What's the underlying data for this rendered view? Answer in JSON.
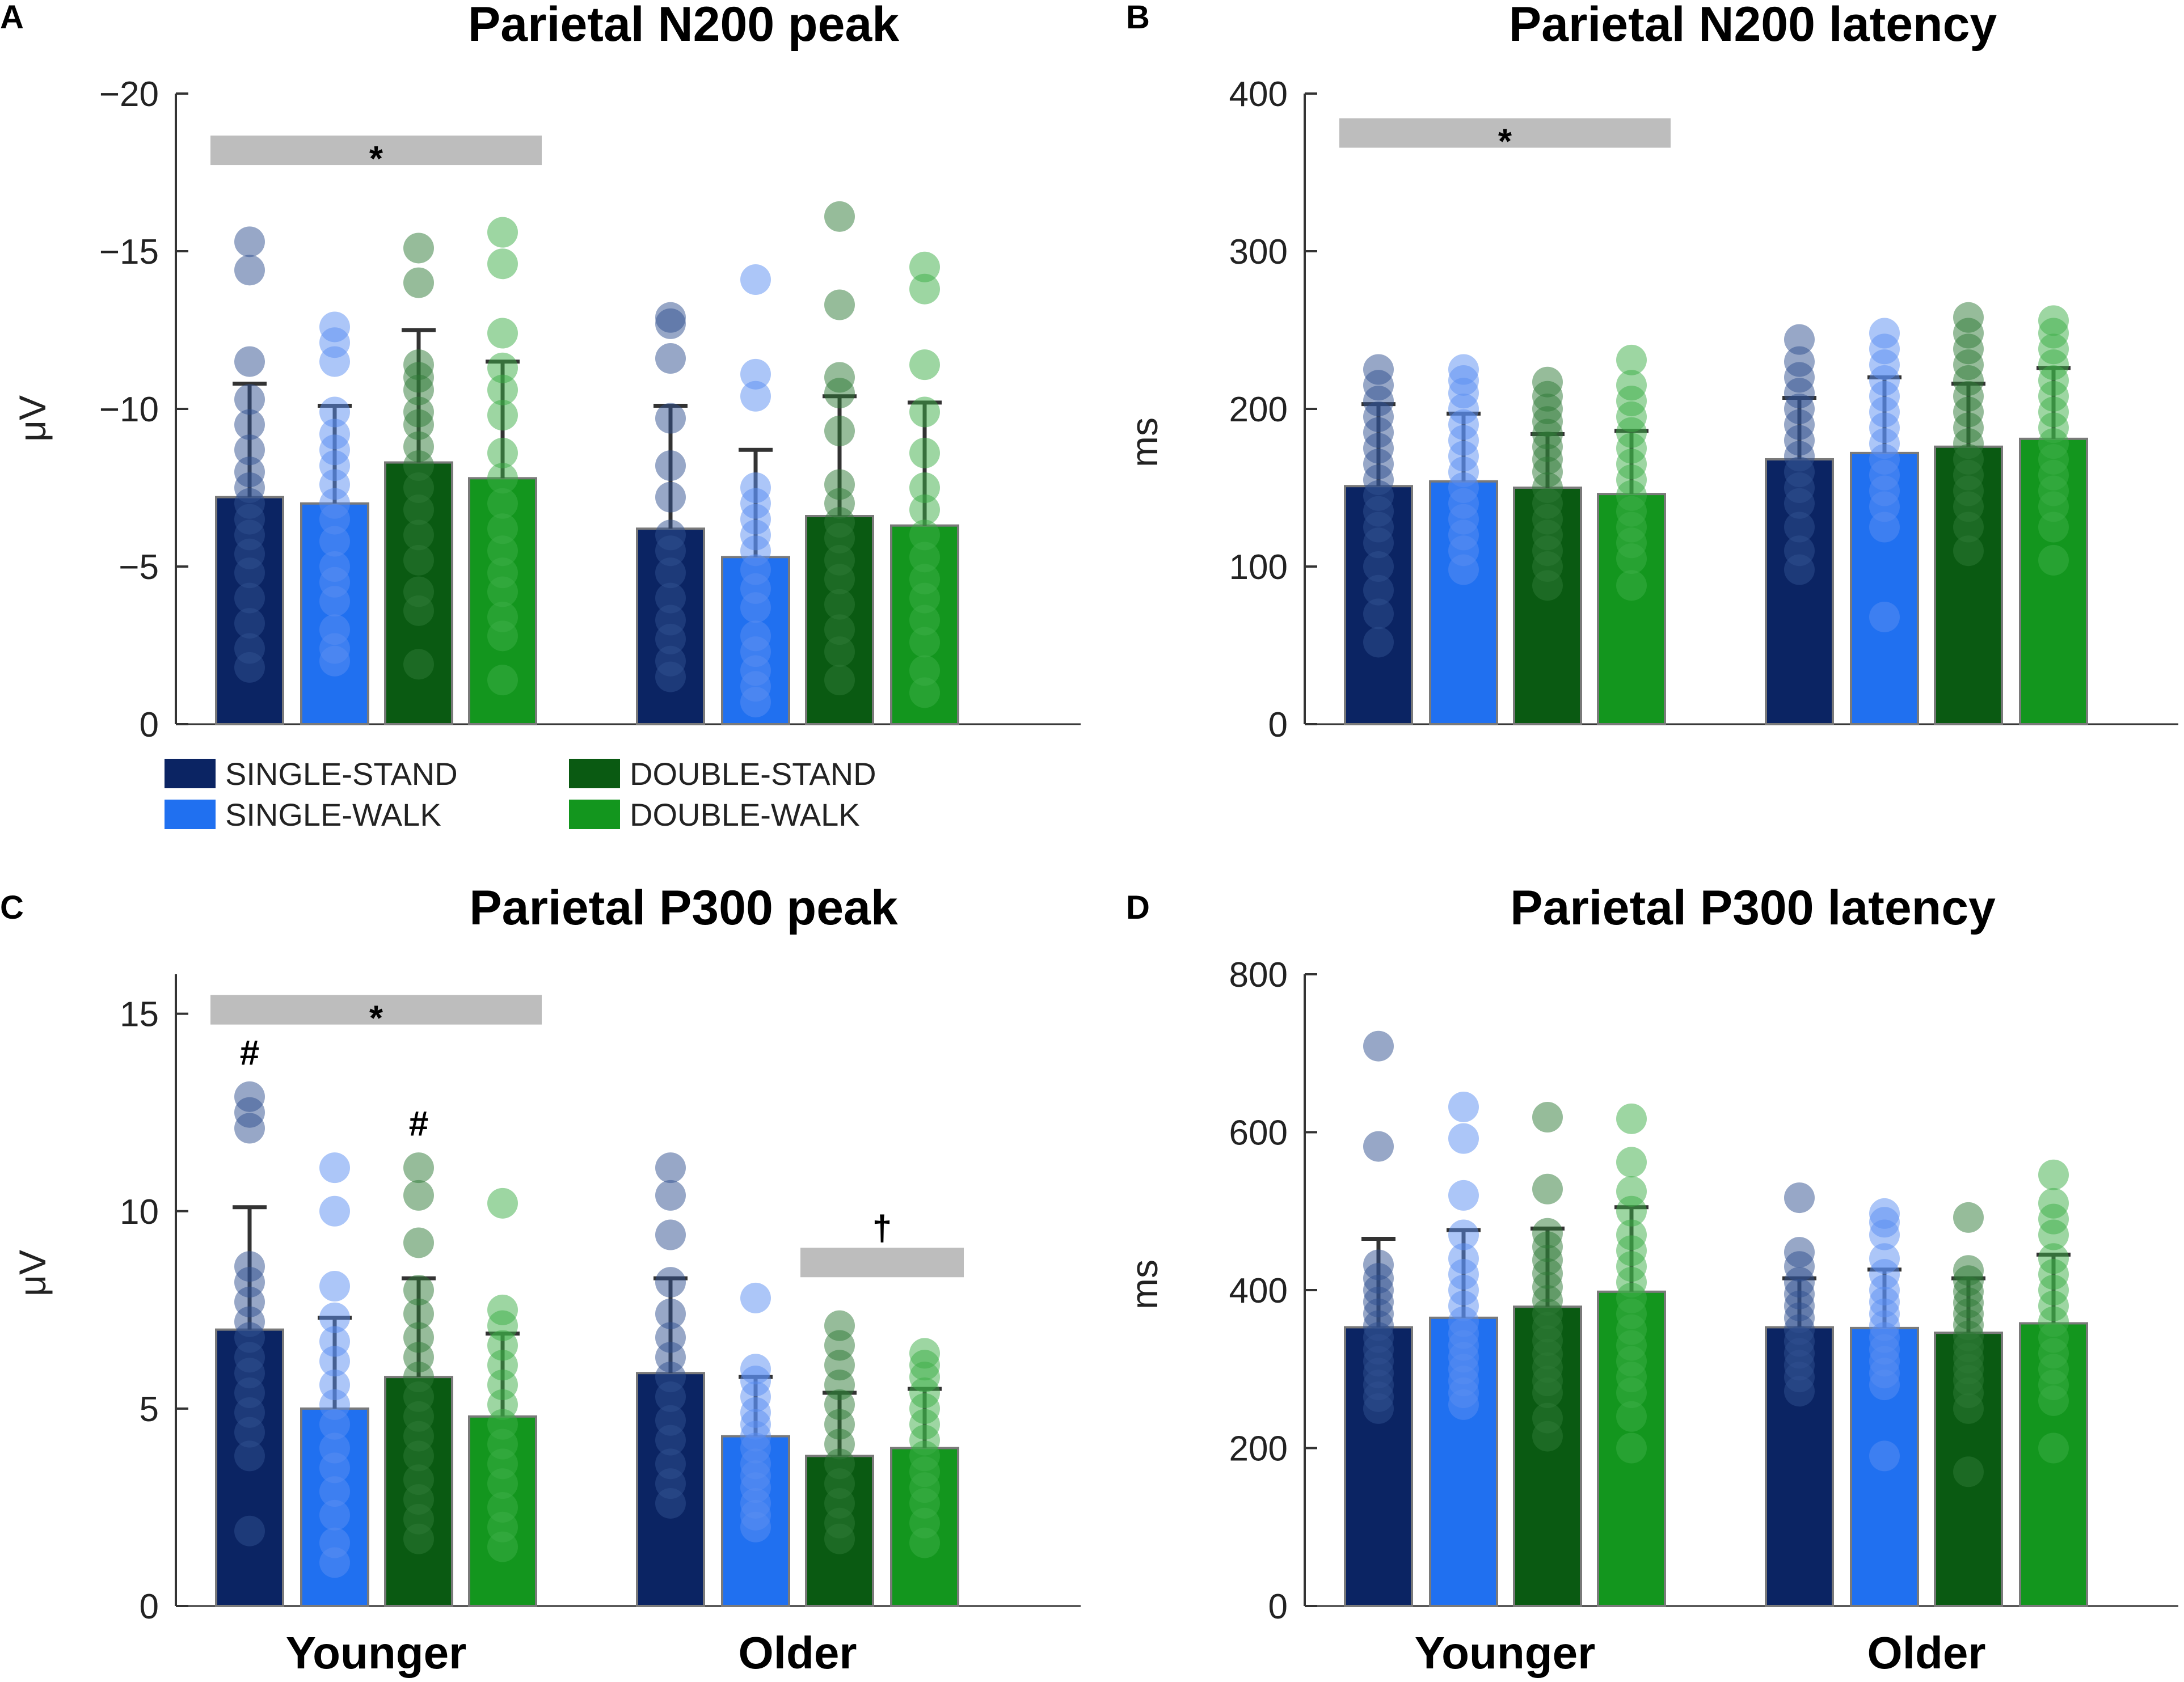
{
  "legend": {
    "entries": [
      {
        "label": "SINGLE-STAND",
        "color": "#0b2463"
      },
      {
        "label": "SINGLE-WALK",
        "color": "#2070f0"
      },
      {
        "label": "DOUBLE-STAND",
        "color": "#0a5a12"
      },
      {
        "label": "DOUBLE-WALK",
        "color": "#13961e"
      }
    ]
  },
  "colors": {
    "bars": [
      "#0b2463",
      "#2070f0",
      "#0a5a12",
      "#13961e"
    ],
    "dots": [
      "#2f4f8f",
      "#5a8ef2",
      "#2e7a36",
      "#3cae46"
    ],
    "sigbar": "#bdbdbd",
    "errorbar": "#333333",
    "axis": "#333333"
  },
  "chart_data": [
    {
      "id": "A",
      "letter": "A",
      "type": "bar",
      "title": "Parietal N200 peak",
      "ylabel": "μV",
      "ylim": [
        0,
        -20
      ],
      "ytick_values": [
        -20,
        -15,
        -10,
        -5,
        0
      ],
      "yticks": [
        "−20",
        "−15",
        "−10",
        "−5",
        "0"
      ],
      "groups": [
        "Younger",
        "Older"
      ],
      "show_group_labels": false,
      "series": [
        {
          "name": "SINGLE-STAND",
          "values": [
            -7.2,
            -6.2
          ],
          "sd_top": [
            -10.8,
            -10.1
          ],
          "points": [
            [
              -15.3,
              -14.4,
              -11.5,
              -10.3,
              -9.5,
              -8.7,
              -8.0,
              -7.5,
              -7.0,
              -6.5,
              -6.0,
              -5.4,
              -4.8,
              -4.0,
              -3.2,
              -2.4,
              -1.8
            ],
            [
              -12.9,
              -12.7,
              -11.6,
              -9.7,
              -8.2,
              -7.2,
              -6.0,
              -5.5,
              -4.8,
              -4.0,
              -3.3,
              -2.7,
              -2.0,
              -1.5
            ]
          ]
        },
        {
          "name": "SINGLE-WALK",
          "values": [
            -7.0,
            -5.3
          ],
          "sd_top": [
            -10.1,
            -8.7
          ],
          "points": [
            [
              -12.6,
              -12.1,
              -11.5,
              -9.9,
              -9.2,
              -8.7,
              -8.2,
              -7.6,
              -7.0,
              -6.5,
              -5.8,
              -5.0,
              -4.5,
              -3.9,
              -3.0,
              -2.4,
              -2.0
            ],
            [
              -14.1,
              -11.1,
              -10.4,
              -7.5,
              -7.0,
              -6.5,
              -6.0,
              -5.5,
              -4.9,
              -4.3,
              -3.7,
              -2.8,
              -2.3,
              -1.7,
              -1.2,
              -0.7
            ]
          ]
        },
        {
          "name": "DOUBLE-STAND",
          "values": [
            -8.3,
            -6.6
          ],
          "sd_top": [
            -12.5,
            -10.4
          ],
          "points": [
            [
              -15.1,
              -14.0,
              -11.4,
              -11.0,
              -10.6,
              -9.9,
              -9.5,
              -8.8,
              -8.2,
              -7.5,
              -6.8,
              -6.0,
              -5.2,
              -4.2,
              -3.6,
              -1.9
            ],
            [
              -16.1,
              -13.3,
              -11.0,
              -10.5,
              -9.3,
              -7.6,
              -7.0,
              -6.4,
              -5.9,
              -5.2,
              -4.6,
              -3.8,
              -3.0,
              -2.3,
              -1.4
            ]
          ]
        },
        {
          "name": "DOUBLE-WALK",
          "values": [
            -7.8,
            -6.3
          ],
          "sd_top": [
            -11.5,
            -10.2
          ],
          "points": [
            [
              -15.6,
              -14.6,
              -12.4,
              -11.3,
              -10.6,
              -9.8,
              -8.6,
              -7.8,
              -7.0,
              -6.2,
              -5.5,
              -4.8,
              -4.2,
              -3.4,
              -2.8,
              -1.4
            ],
            [
              -14.5,
              -13.8,
              -11.4,
              -9.9,
              -8.6,
              -7.5,
              -6.8,
              -6.0,
              -5.3,
              -4.6,
              -4.0,
              -3.3,
              -2.6,
              -1.7,
              -1.0
            ]
          ]
        }
      ],
      "annotations": [
        {
          "label": "*",
          "from_group": 0,
          "from_series": 0,
          "to_group": 0,
          "to_series": 3,
          "y": -18.2
        }
      ]
    },
    {
      "id": "B",
      "letter": "B",
      "type": "bar",
      "title": "Parietal N200 latency",
      "ylabel": "ms",
      "ylim": [
        0,
        400
      ],
      "ytick_values": [
        0,
        100,
        200,
        300,
        400
      ],
      "yticks": [
        "0",
        "100",
        "200",
        "300",
        "400"
      ],
      "groups": [
        "Younger",
        "Older"
      ],
      "show_group_labels": false,
      "series": [
        {
          "name": "SINGLE-STAND",
          "values": [
            151,
            168
          ],
          "sd_top": [
            203,
            207
          ],
          "points": [
            [
              225,
              215,
              205,
              195,
              185,
              175,
              165,
              155,
              145,
              135,
              125,
              115,
              100,
              85,
              70,
              52
            ],
            [
              244,
              230,
              220,
              210,
              200,
              190,
              180,
              170,
              160,
              150,
              140,
              125,
              110,
              98
            ]
          ]
        },
        {
          "name": "SINGLE-WALK",
          "values": [
            154,
            172
          ],
          "sd_top": [
            197,
            220
          ],
          "points": [
            [
              225,
              218,
              210,
              200,
              190,
              180,
              170,
              160,
              150,
              140,
              130,
              120,
              110,
              98
            ],
            [
              248,
              238,
              228,
              218,
              208,
              198,
              188,
              178,
              168,
              158,
              148,
              138,
              125,
              68
            ]
          ]
        },
        {
          "name": "DOUBLE-STAND",
          "values": [
            150,
            176
          ],
          "sd_top": [
            184,
            216
          ],
          "points": [
            [
              217,
              208,
              200,
              192,
              184,
              176,
              168,
              160,
              150,
              140,
              130,
              120,
              110,
              100,
              88
            ],
            [
              258,
              248,
              238,
              228,
              218,
              208,
              198,
              188,
              178,
              168,
              158,
              148,
              138,
              125,
              110
            ]
          ]
        },
        {
          "name": "DOUBLE-WALK",
          "values": [
            146,
            181
          ],
          "sd_top": [
            186,
            226
          ],
          "points": [
            [
              231,
              215,
              205,
              195,
              185,
              175,
              165,
              155,
              145,
              135,
              125,
              115,
              105,
              88
            ],
            [
              256,
              248,
              238,
              228,
              218,
              208,
              198,
              188,
              178,
              168,
              158,
              148,
              138,
              125,
              104
            ]
          ]
        }
      ],
      "annotations": [
        {
          "label": "*",
          "from_group": 0,
          "from_series": 0,
          "to_group": 0,
          "to_series": 3,
          "y": 375
        }
      ]
    },
    {
      "id": "C",
      "letter": "C",
      "type": "bar",
      "title": "Parietal P300 peak",
      "ylabel": "μV",
      "ylim": [
        0,
        16
      ],
      "ytick_values": [
        0,
        5,
        10,
        15
      ],
      "yticks": [
        "0",
        "5",
        "10",
        "15"
      ],
      "groups": [
        "Younger",
        "Older"
      ],
      "show_group_labels": true,
      "series": [
        {
          "name": "SINGLE-STAND",
          "values": [
            7.0,
            5.9
          ],
          "sd_top": [
            10.1,
            8.3
          ],
          "points": [
            [
              12.9,
              12.5,
              12.1,
              8.6,
              8.2,
              7.7,
              7.2,
              6.8,
              6.3,
              5.9,
              5.4,
              4.9,
              4.4,
              3.8,
              1.9
            ],
            [
              11.1,
              10.4,
              9.4,
              8.2,
              7.4,
              6.8,
              6.3,
              5.8,
              5.3,
              4.7,
              4.2,
              3.6,
              3.1,
              2.6
            ]
          ]
        },
        {
          "name": "SINGLE-WALK",
          "values": [
            5.0,
            4.3
          ],
          "sd_top": [
            7.3,
            5.8
          ],
          "points": [
            [
              11.1,
              10.0,
              8.1,
              7.3,
              6.7,
              6.2,
              5.6,
              5.1,
              4.6,
              4.0,
              3.5,
              2.9,
              2.3,
              1.6,
              1.1
            ],
            [
              7.8,
              6.0,
              5.7,
              5.3,
              4.9,
              4.6,
              4.3,
              4.0,
              3.6,
              3.3,
              3.0,
              2.6,
              2.3,
              2.0
            ]
          ]
        },
        {
          "name": "DOUBLE-STAND",
          "values": [
            5.8,
            3.8
          ],
          "sd_top": [
            8.3,
            5.4
          ],
          "points": [
            [
              11.1,
              10.4,
              9.2,
              8.0,
              7.4,
              6.8,
              6.3,
              5.8,
              5.3,
              4.8,
              4.3,
              3.8,
              3.2,
              2.7,
              2.2,
              1.7
            ],
            [
              7.1,
              6.6,
              6.1,
              5.6,
              5.1,
              4.6,
              4.1,
              3.6,
              3.1,
              2.6,
              2.1,
              1.7
            ]
          ]
        },
        {
          "name": "DOUBLE-WALK",
          "values": [
            4.8,
            4.0
          ],
          "sd_top": [
            6.9,
            5.5
          ],
          "points": [
            [
              10.2,
              7.5,
              7.1,
              6.6,
              6.1,
              5.6,
              5.1,
              4.6,
              4.1,
              3.6,
              3.1,
              2.5,
              2.0,
              1.5
            ],
            [
              6.4,
              6.1,
              5.8,
              5.4,
              5.0,
              4.6,
              4.2,
              3.8,
              3.4,
              3.0,
              2.6,
              2.1,
              1.6
            ]
          ]
        }
      ],
      "annotations": [
        {
          "label": "*",
          "from_group": 0,
          "from_series": 0,
          "to_group": 0,
          "to_series": 3,
          "y": 15.1
        },
        {
          "label": "†",
          "from_group": 1,
          "from_series": 2,
          "to_group": 1,
          "to_series": 3,
          "y": 8.7
        },
        {
          "label": "#",
          "group": 0,
          "series": 0,
          "y": 14.0
        },
        {
          "label": "#",
          "group": 0,
          "series": 2,
          "y": 12.2
        }
      ]
    },
    {
      "id": "D",
      "letter": "D",
      "type": "bar",
      "title": "Parietal P300 latency",
      "ylabel": "ms",
      "ylim": [
        0,
        800
      ],
      "ytick_values": [
        0,
        200,
        400,
        600,
        800
      ],
      "yticks": [
        "0",
        "200",
        "400",
        "600",
        "800"
      ],
      "groups": [
        "Younger",
        "Older"
      ],
      "show_group_labels": true,
      "series": [
        {
          "name": "SINGLE-STAND",
          "values": [
            353,
            353
          ],
          "sd_top": [
            465,
            415
          ],
          "points": [
            [
              709,
              582,
              432,
              415,
              400,
              385,
              370,
              355,
              340,
              325,
              310,
              295,
              280,
              265,
              250
            ],
            [
              517,
              448,
              430,
              410,
              395,
              380,
              365,
              350,
              335,
              320,
              305,
              290,
              272
            ]
          ]
        },
        {
          "name": "SINGLE-WALK",
          "values": [
            365,
            352
          ],
          "sd_top": [
            476,
            426
          ],
          "points": [
            [
              632,
              592,
              520,
              470,
              440,
              420,
              400,
              380,
              360,
              345,
              330,
              315,
              300,
              285,
              270,
              255
            ],
            [
              497,
              486,
              470,
              440,
              420,
              400,
              385,
              370,
              355,
              340,
              325,
              310,
              295,
              280,
              190
            ]
          ]
        },
        {
          "name": "DOUBLE-STAND",
          "values": [
            379,
            346
          ],
          "sd_top": [
            478,
            415
          ],
          "points": [
            [
              619,
              528,
              472,
              455,
              438,
              421,
              404,
              387,
              370,
              353,
              336,
              319,
              302,
              285,
              270,
              238,
              215
            ],
            [
              492,
              425,
              412,
              398,
              384,
              370,
              356,
              342,
              328,
              314,
              300,
              286,
              270,
              250,
              170
            ]
          ]
        },
        {
          "name": "DOUBLE-WALK",
          "values": [
            398,
            358
          ],
          "sd_top": [
            505,
            445
          ],
          "points": [
            [
              617,
              562,
              525,
              500,
              470,
              450,
              430,
              410,
              390,
              370,
              350,
              330,
              310,
              290,
              270,
              240,
              200
            ],
            [
              546,
              510,
              490,
              470,
              440,
              420,
              400,
              380,
              360,
              340,
              320,
              300,
              280,
              260,
              200
            ]
          ]
        }
      ],
      "annotations": []
    }
  ]
}
